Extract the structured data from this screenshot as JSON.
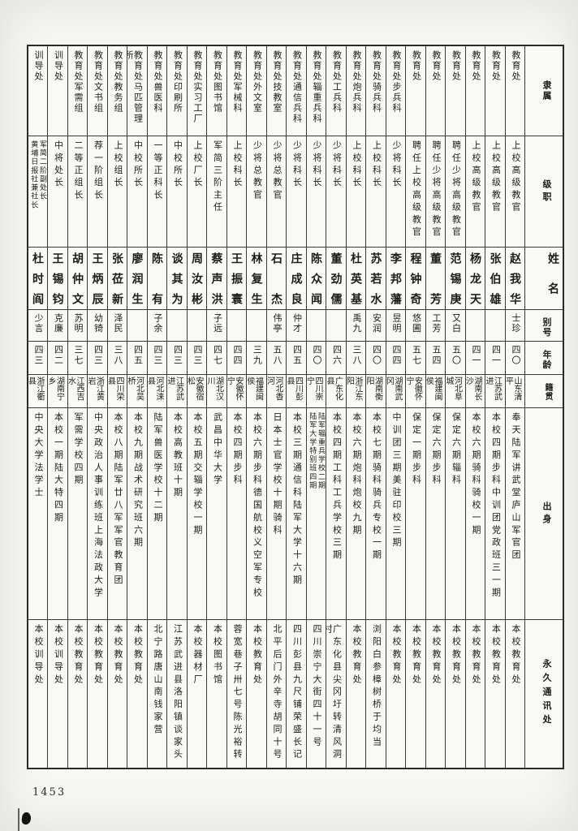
{
  "page": {
    "number": "1453"
  },
  "headers": {
    "unit": "隶属",
    "rank": "级职",
    "name": "姓名",
    "alias": "别号",
    "age": "年龄",
    "origin": "籍贯",
    "background": "出身",
    "address": "永久通讯处"
  },
  "people": [
    {
      "unit": "教育处",
      "rank": "上校高级教官",
      "name": "赵我华",
      "alias": "士珍",
      "age": "四〇",
      "origin": "山东清平",
      "background": "奉天陆军讲武堂庐山军官团",
      "address": "本校教育处"
    },
    {
      "unit": "教育处",
      "rank": "上校高级教官",
      "name": "张伯雄",
      "alias": "",
      "age": "四一",
      "origin": "江苏武进",
      "background": "本校四期步科中训团党政班三一期",
      "address": "本校教育处"
    },
    {
      "unit": "教育处",
      "rank": "上校高级教官",
      "name": "杨龙天",
      "alias": "",
      "age": "四一",
      "origin": "湖南长沙",
      "background": "本校六期骑科骑校一期",
      "address": "本校教育处"
    },
    {
      "unit": "教育处",
      "rank": "聘任少将高级教官",
      "name": "范锡庚",
      "alias": "又白",
      "age": "五〇",
      "origin": "河北阜城",
      "background": "保定六期辎科",
      "address": "本校教育处"
    },
    {
      "unit": "教育处",
      "rank": "聘任少将高级教官",
      "name": "董芳",
      "alias": "工芳",
      "age": "五四",
      "origin": "福建闽侯",
      "background": "保定六期步科",
      "address": "本校教育处"
    },
    {
      "unit": "教育处",
      "rank": "聘任上校高级教官",
      "name": "程钟奇",
      "alias": "悠圃",
      "age": "五七",
      "origin": "安徽怀宁",
      "background": "保定一期步科",
      "address": "本校教育处"
    },
    {
      "unit": "教育处步兵科",
      "rank": "少将科长",
      "name": "李邦藩",
      "alias": "昱明",
      "age": "四四",
      "origin": "湖南武冈",
      "background": "中训团三期美驻印校三期",
      "address": "本校教育处"
    },
    {
      "unit": "教育处骑兵科",
      "rank": "上校科长",
      "name": "苏若水",
      "alias": "安润",
      "age": "四〇",
      "origin": "湖南衡阳",
      "background": "本校七期骑科骑兵专校一期",
      "address": "浏阳白参樟树桥于均当"
    },
    {
      "unit": "教育处炮兵科",
      "rank": "上校科长",
      "name": "杜英基",
      "alias": "禹九",
      "age": "三八",
      "origin": "浙江东阳",
      "background": "本校六期炮科炮校九期",
      "address": "本校教育处"
    },
    {
      "unit": "教育处工兵科",
      "rank": "少将科长",
      "name": "董劲儒",
      "alias": "",
      "age": "四六",
      "origin": "广东化县",
      "background": "本校四期工科工兵学校三期",
      "address": "广东化县尖冈圩转清风洞村"
    },
    {
      "unit": "教育处辎重兵科",
      "rank": "少将科长",
      "name": "陈众闻",
      "alias": "",
      "age": "四〇",
      "origin": "四川崇宁",
      "background": "陆军辎重兵学校二期\n陆军大学特别班四期",
      "address": "四川崇宁大街四十一号"
    },
    {
      "unit": "教育处通信兵科",
      "rank": "少将科长",
      "name": "庄成良",
      "alias": "仲才",
      "age": "四五",
      "origin": "四川彭县",
      "background": "本校三期通信科陆军大学十六期",
      "address": "四川彭县九尺铺荣盛长记"
    },
    {
      "unit": "教育处技教室",
      "rank": "少将总教官",
      "name": "石杰",
      "alias": "伟亭",
      "age": "五八",
      "origin": "河北香河",
      "background": "日本士官学校十期骑科",
      "address": "北平后门外辛寺胡同十号"
    },
    {
      "unit": "教育处外文室",
      "rank": "少将总教官",
      "name": "林复生",
      "alias": "",
      "age": "三九",
      "origin": "福建闽侯",
      "background": "本校六期步科德国航校义空军专校",
      "address": "本校教育处"
    },
    {
      "unit": "教育处军械科",
      "rank": "上校科长",
      "name": "王振寰",
      "alias": "",
      "age": "四四",
      "origin": "安徽怀宁",
      "background": "本校四期步科",
      "address": "蓉宽巷子卅七号陈光裕转"
    },
    {
      "unit": "教育处图书馆",
      "rank": "军简三阶主任",
      "name": "蔡声洪",
      "alias": "子远",
      "age": "四七",
      "origin": "湖北汉川",
      "background": "武昌中华大学",
      "address": "本校图书馆"
    },
    {
      "unit": "教育处实习工厂",
      "rank": "上校厂长",
      "name": "周汝彬",
      "alias": "",
      "age": "四三",
      "origin": "安徽宿松",
      "background": "本校五期交辎学校一期",
      "address": "本校器材厂"
    },
    {
      "unit": "教育处印刷所",
      "rank": "中校所长",
      "name": "谈其为",
      "alias": "",
      "age": "四三",
      "origin": "江苏武进",
      "background": "本校高教班十期",
      "address": "江苏武进县洛阳镇谈家头"
    },
    {
      "unit": "教育处兽医科",
      "rank": "一等正科长",
      "name": "陈有",
      "alias": "子余",
      "age": "四三",
      "origin": "河北涞县",
      "background": "陆军兽医学校十二期",
      "address": "北宁路唐山南钱家营"
    },
    {
      "unit": "教育处马匹管理所",
      "rank": "中校所长",
      "name": "廖润生",
      "alias": "",
      "age": "四五",
      "origin": "河北吴桥",
      "background": "本校九期战术研究班六期",
      "address": "本校教育处"
    },
    {
      "unit": "教育处教务组",
      "rank": "上校组长",
      "name": "张莅新",
      "alias": "泽民",
      "age": "三八",
      "origin": "四川荣县",
      "background": "本校八期陆军廿八军军官教育团",
      "address": "本校教育处"
    },
    {
      "unit": "教育处文书组",
      "rank": "荐一阶组长",
      "name": "王炳辰",
      "alias": "幼锜",
      "age": "四三",
      "origin": "浙江黄岩",
      "background": "中央政治人事训练班上海法政大学",
      "address": "本校教育处"
    },
    {
      "unit": "教育处军需组",
      "rank": "二等正组长",
      "name": "胡仲文",
      "alias": "苏明",
      "age": "三七",
      "origin": "江西吉水",
      "background": "军需学校四期",
      "address": "本校教育处"
    },
    {
      "unit": "训导处",
      "rank": "中将处长",
      "name": "王锡钧",
      "alias": "克廉",
      "age": "四二",
      "origin": "湖南宁乡",
      "background": "本校一期陆大特四期",
      "address": "本校训导处"
    },
    {
      "unit": "训导处",
      "rank": "军简二阶副处长\n黄埔日报社兼社长",
      "name": "杜时阎",
      "alias": "少言",
      "age": "四三",
      "origin": "浙江衢县",
      "background": "中央大学法学士",
      "address": "本校训导处"
    }
  ]
}
